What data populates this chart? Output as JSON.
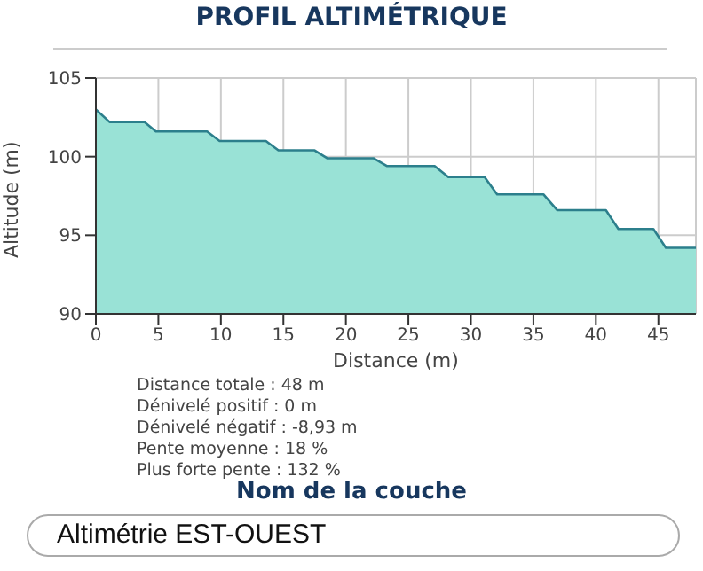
{
  "chart_data": {
    "type": "area",
    "title": "PROFIL ALTIMÉTRIQUE",
    "xlabel": "Distance (m)",
    "ylabel": "Altitude (m)",
    "x": [
      0,
      1.1,
      3.9,
      4.8,
      8.9,
      9.9,
      13.6,
      14.6,
      17.5,
      18.5,
      22.2,
      23.3,
      27.1,
      28.2,
      31.1,
      32.1,
      35.8,
      36.9,
      40.8,
      41.8,
      44.6,
      45.6,
      48
    ],
    "series": [
      {
        "color": "#2c7f8c",
        "values": [
          103,
          102.2,
          102.2,
          101.6,
          101.6,
          101,
          101,
          100.4,
          100.4,
          99.9,
          99.9,
          99.4,
          99.4,
          98.7,
          98.7,
          97.6,
          97.6,
          96.6,
          96.6,
          95.4,
          95.4,
          94.2,
          94.2
        ]
      }
    ],
    "xlim": [
      0,
      48
    ],
    "xticks": [
      0,
      5,
      10,
      15,
      20,
      25,
      30,
      35,
      40,
      45
    ],
    "ylim": [
      90,
      105
    ],
    "yticks": [
      90,
      95,
      100,
      105
    ],
    "grid": true,
    "marker": "none",
    "annotations": [
      "Distance totale : 48 m",
      "Dénivelé positif : 0 m",
      "Dénivelé négatif : -8,93 m",
      "Pente moyenne : 18 %",
      "Plus forte pente : 132 %",
      "Nom de la couche",
      "Altimétrie EST-OUEST"
    ]
  }
}
